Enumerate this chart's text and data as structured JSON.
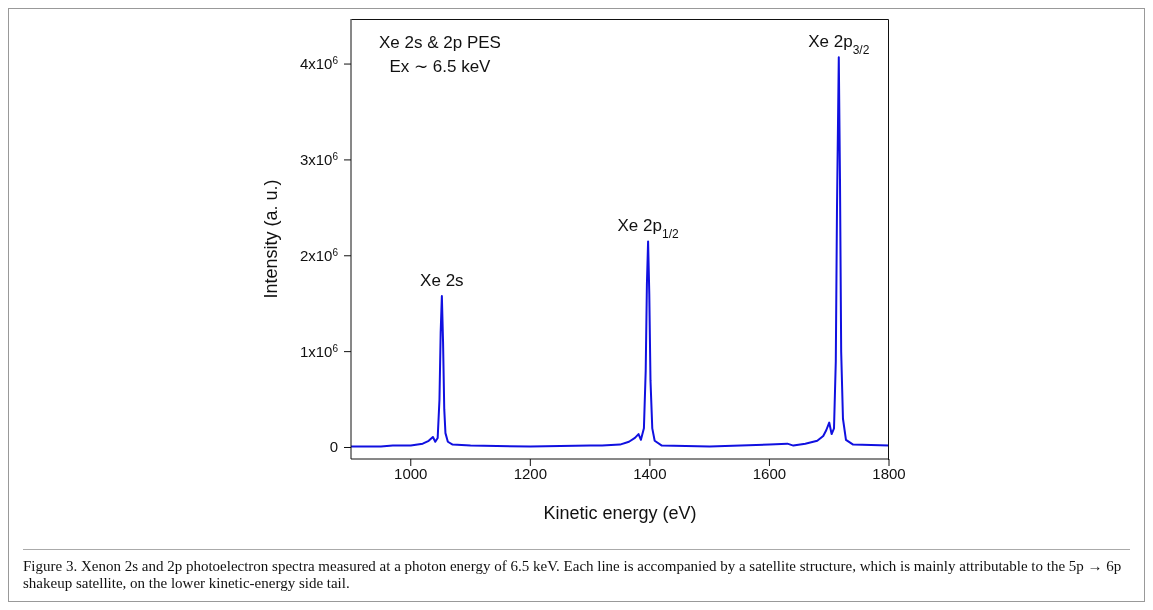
{
  "chart_data": {
    "type": "line",
    "xlabel": "Kinetic energy (eV)",
    "ylabel": "Intensity (a. u.)",
    "x": [
      900,
      950,
      970,
      1000,
      1020,
      1030,
      1037,
      1041,
      1045,
      1048,
      1050,
      1052,
      1054,
      1056,
      1058,
      1062,
      1070,
      1100,
      1200,
      1300,
      1315,
      1320,
      1350,
      1365,
      1375,
      1381,
      1385,
      1390,
      1393,
      1395,
      1397,
      1399,
      1401,
      1404,
      1408,
      1420,
      1500,
      1600,
      1630,
      1640,
      1660,
      1680,
      1690,
      1695,
      1700,
      1704,
      1708,
      1711,
      1713,
      1716,
      1718,
      1720,
      1723,
      1728,
      1740,
      1800
    ],
    "series": [
      {
        "color": "#1010e0",
        "values": [
          10000,
          10000,
          20000,
          20000,
          40000,
          70000,
          110000,
          60000,
          100000,
          500000,
          1200000,
          1580000,
          1100000,
          400000,
          150000,
          60000,
          30000,
          20000,
          10000,
          20000,
          20000,
          20000,
          30000,
          60000,
          100000,
          140000,
          80000,
          200000,
          800000,
          1700000,
          2150000,
          1600000,
          700000,
          200000,
          70000,
          20000,
          10000,
          30000,
          40000,
          20000,
          40000,
          70000,
          120000,
          180000,
          260000,
          140000,
          200000,
          900000,
          2500000,
          4070000,
          2800000,
          1000000,
          300000,
          80000,
          30000,
          20000
        ]
      }
    ],
    "xlim": [
      900,
      1800
    ],
    "xticks": [
      1000,
      1200,
      1400,
      1600,
      1800
    ],
    "ylim": [
      -120000,
      4470000
    ],
    "yticks": [
      0,
      {
        "value": 1000000,
        "label": "1x10$^{6}$"
      },
      {
        "value": 2000000,
        "label": "2x10$^{6}$"
      },
      {
        "value": 3000000,
        "label": "3x10$^{6}$"
      },
      {
        "value": 4000000,
        "label": "4x10$^{6}$"
      }
    ],
    "marker": "none",
    "line_style": "solid",
    "annotations": [
      "Xe 2s & 2p PES",
      "Ex ∼ 6.5 keV",
      {
        "text": "Xe 2s",
        "x": 1052,
        "y": 1580000
      },
      {
        "text": "Xe 2p$_{1/2}$",
        "x": 1397,
        "y": 2150000
      },
      {
        "text": "Xe 2p$_{3/2}$",
        "x": 1716,
        "y": 4070000
      },
      "Figure 3. Xenon 2s and 2p photoelectron spectra measured at a photon energy of 6.5 keV. Each line is accompanied by a satellite structure, which is mainly attributable to the 5p → 6p shakeup satellite, on the lower kinetic-energy side tail."
    ]
  }
}
